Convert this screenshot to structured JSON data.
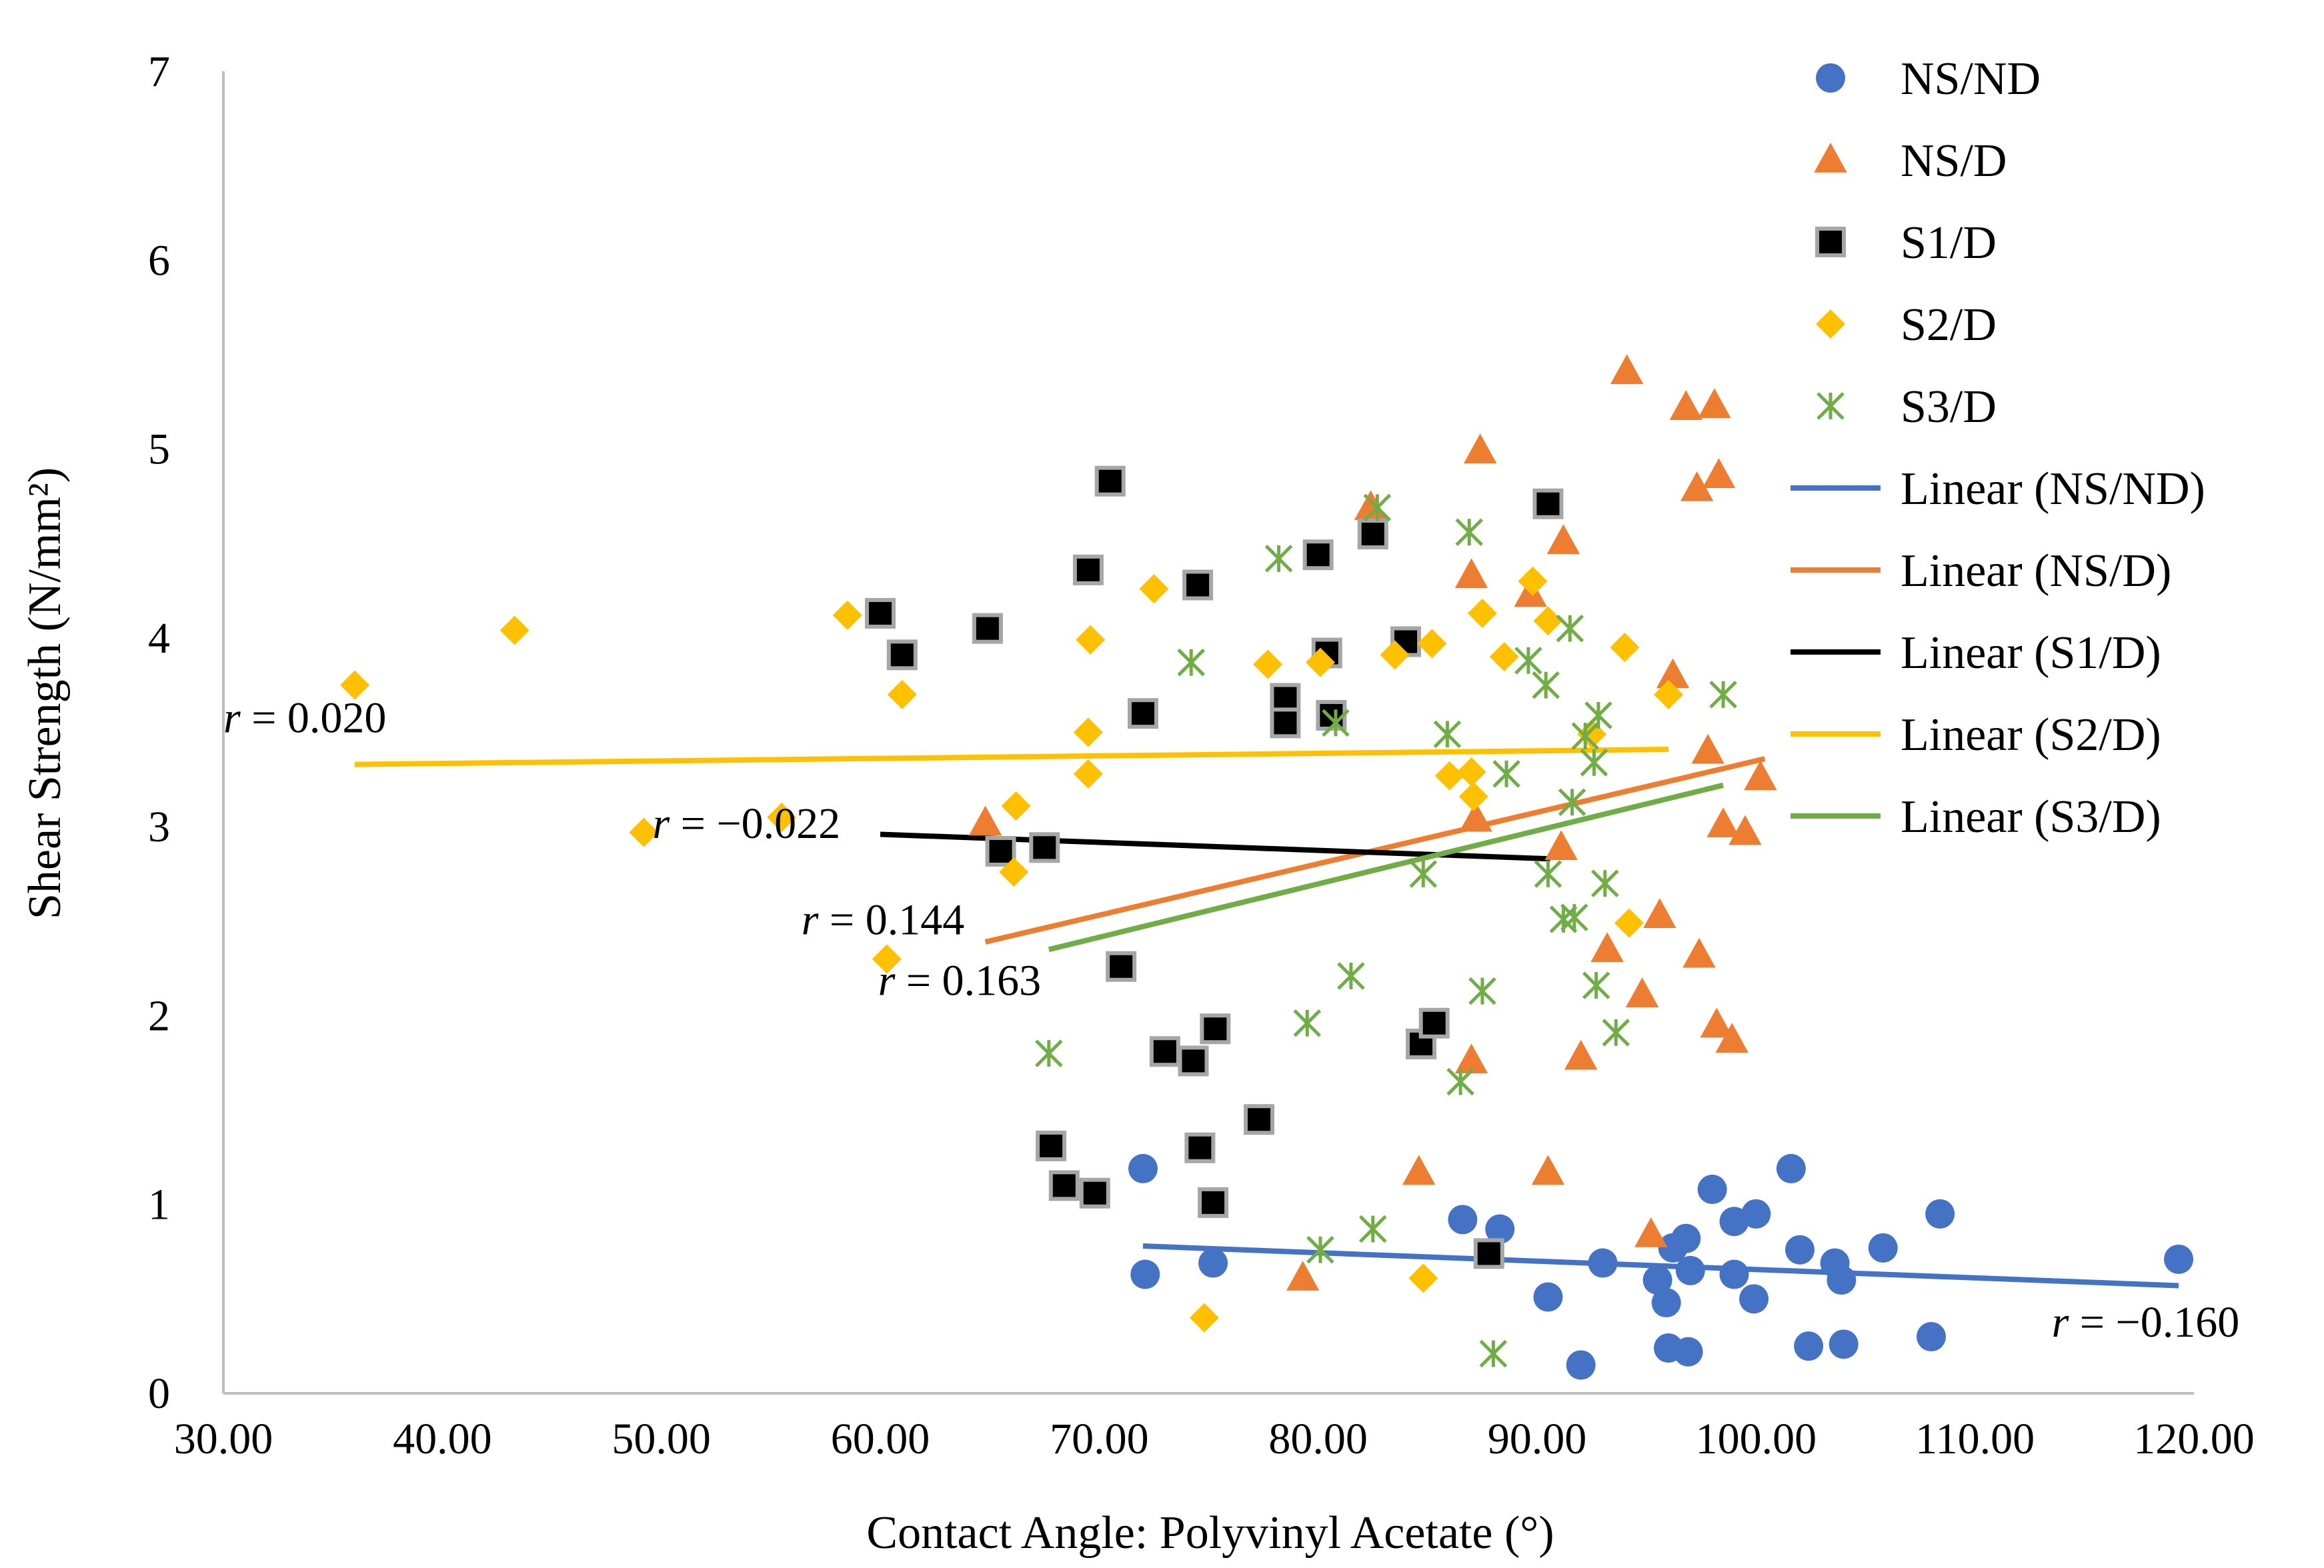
{
  "chart_data": {
    "type": "scatter",
    "xlabel": "Contact Angle: Polyvinyl Acetate (°)",
    "ylabel": "Shear Strength (N/mm²)",
    "xlim": [
      30,
      120
    ],
    "ylim": [
      0,
      7
    ],
    "x_ticks": [
      "30.00",
      "40.00",
      "50.00",
      "60.00",
      "70.00",
      "80.00",
      "90.00",
      "100.00",
      "110.00",
      "120.00"
    ],
    "y_ticks": [
      "0",
      "1",
      "2",
      "3",
      "4",
      "5",
      "6",
      "7"
    ],
    "grid": false,
    "legend_position": "right",
    "series": [
      {
        "name": "NS/ND",
        "marker": "circle",
        "color": "#4472C4",
        "points": [
          [
            72.0,
            1.19
          ],
          [
            72.1,
            0.63
          ],
          [
            75.2,
            0.69
          ],
          [
            86.6,
            0.92
          ],
          [
            88.3,
            0.87
          ],
          [
            90.5,
            0.51
          ],
          [
            92.0,
            0.15
          ],
          [
            93.0,
            0.69
          ],
          [
            95.5,
            0.6
          ],
          [
            95.9,
            0.48
          ],
          [
            96.0,
            0.24
          ],
          [
            96.2,
            0.77
          ],
          [
            96.8,
            0.82
          ],
          [
            96.9,
            0.22
          ],
          [
            97.0,
            0.65
          ],
          [
            98.0,
            1.08
          ],
          [
            99.0,
            0.63
          ],
          [
            99.0,
            0.91
          ],
          [
            99.9,
            0.5
          ],
          [
            100.0,
            0.95
          ],
          [
            101.6,
            1.19
          ],
          [
            102.0,
            0.76
          ],
          [
            102.4,
            0.25
          ],
          [
            103.6,
            0.69
          ],
          [
            103.9,
            0.6
          ],
          [
            104.0,
            0.26
          ],
          [
            105.8,
            0.77
          ],
          [
            108.0,
            0.3
          ],
          [
            108.4,
            0.95
          ],
          [
            119.3,
            0.71
          ]
        ]
      },
      {
        "name": "NS/D",
        "marker": "triangle",
        "color": "#ED7D31",
        "points": [
          [
            64.8,
            3.02
          ],
          [
            79.3,
            0.61
          ],
          [
            82.4,
            4.69
          ],
          [
            84.6,
            1.17
          ],
          [
            87.0,
            4.33
          ],
          [
            87.0,
            1.76
          ],
          [
            87.2,
            3.04
          ],
          [
            87.4,
            4.99
          ],
          [
            89.7,
            4.23
          ],
          [
            90.5,
            1.17
          ],
          [
            91.1,
            2.89
          ],
          [
            91.2,
            4.51
          ],
          [
            92.0,
            1.78
          ],
          [
            93.2,
            2.35
          ],
          [
            94.1,
            5.41
          ],
          [
            94.8,
            2.11
          ],
          [
            95.2,
            0.84
          ],
          [
            95.6,
            2.53
          ],
          [
            96.2,
            3.8
          ],
          [
            96.8,
            5.22
          ],
          [
            97.3,
            4.79
          ],
          [
            97.4,
            2.32
          ],
          [
            97.8,
            3.4
          ],
          [
            98.1,
            5.23
          ],
          [
            98.2,
            1.95
          ],
          [
            98.3,
            4.86
          ],
          [
            98.5,
            3.01
          ],
          [
            98.9,
            1.87
          ],
          [
            99.5,
            2.97
          ],
          [
            100.2,
            3.26
          ]
        ]
      },
      {
        "name": "S1/D",
        "marker": "square",
        "color": "#000000",
        "points": [
          [
            60.0,
            4.13
          ],
          [
            61.0,
            3.91
          ],
          [
            64.9,
            4.05
          ],
          [
            65.5,
            2.87
          ],
          [
            67.5,
            2.89
          ],
          [
            67.8,
            1.31
          ],
          [
            68.4,
            1.1
          ],
          [
            69.5,
            4.36
          ],
          [
            69.8,
            1.06
          ],
          [
            70.5,
            4.83
          ],
          [
            71.0,
            2.26
          ],
          [
            72.0,
            3.6
          ],
          [
            73.0,
            1.81
          ],
          [
            74.3,
            1.76
          ],
          [
            74.5,
            4.28
          ],
          [
            74.6,
            1.3
          ],
          [
            75.2,
            1.01
          ],
          [
            75.3,
            1.93
          ],
          [
            77.3,
            1.45
          ],
          [
            78.5,
            3.68
          ],
          [
            78.5,
            3.55
          ],
          [
            80.0,
            4.44
          ],
          [
            80.4,
            3.92
          ],
          [
            80.6,
            3.59
          ],
          [
            82.5,
            4.55
          ],
          [
            84.0,
            3.98
          ],
          [
            84.7,
            1.85
          ],
          [
            85.3,
            1.96
          ],
          [
            87.8,
            0.74
          ],
          [
            90.5,
            4.71
          ]
        ]
      },
      {
        "name": "S2/D",
        "marker": "diamond",
        "color": "#FFC000",
        "points": [
          [
            36.0,
            3.75
          ],
          [
            43.3,
            4.04
          ],
          [
            49.2,
            2.97
          ],
          [
            55.5,
            3.05
          ],
          [
            58.5,
            4.12
          ],
          [
            60.3,
            2.3
          ],
          [
            61.0,
            3.7
          ],
          [
            66.1,
            2.76
          ],
          [
            66.2,
            3.11
          ],
          [
            69.5,
            3.5
          ],
          [
            69.5,
            3.28
          ],
          [
            69.6,
            3.99
          ],
          [
            72.5,
            4.26
          ],
          [
            74.8,
            0.4
          ],
          [
            77.7,
            3.86
          ],
          [
            80.1,
            3.87
          ],
          [
            83.5,
            3.91
          ],
          [
            84.8,
            0.61
          ],
          [
            85.2,
            3.97
          ],
          [
            86.0,
            3.27
          ],
          [
            87.0,
            3.29
          ],
          [
            87.1,
            3.16
          ],
          [
            87.5,
            4.13
          ],
          [
            88.5,
            3.9
          ],
          [
            89.8,
            4.3
          ],
          [
            90.5,
            4.09
          ],
          [
            92.5,
            3.49
          ],
          [
            94.0,
            3.95
          ],
          [
            94.2,
            2.49
          ],
          [
            96.0,
            3.7
          ]
        ]
      },
      {
        "name": "S3/D",
        "marker": "x",
        "color": "#70AD47",
        "points": [
          [
            67.7,
            1.8
          ],
          [
            74.2,
            3.87
          ],
          [
            78.2,
            4.42
          ],
          [
            79.5,
            1.96
          ],
          [
            80.1,
            0.76
          ],
          [
            80.8,
            3.55
          ],
          [
            81.5,
            2.21
          ],
          [
            82.5,
            0.87
          ],
          [
            82.7,
            4.69
          ],
          [
            84.8,
            2.75
          ],
          [
            85.9,
            3.49
          ],
          [
            86.5,
            1.65
          ],
          [
            86.9,
            4.56
          ],
          [
            87.5,
            2.13
          ],
          [
            88.6,
            3.28
          ],
          [
            89.6,
            3.88
          ],
          [
            90.4,
            3.75
          ],
          [
            90.5,
            2.75
          ],
          [
            91.5,
            4.05
          ],
          [
            91.6,
            3.13
          ],
          [
            91.7,
            2.52
          ],
          [
            92.2,
            3.48
          ],
          [
            92.6,
            3.34
          ],
          [
            92.7,
            2.16
          ],
          [
            92.8,
            3.59
          ],
          [
            93.1,
            2.7
          ],
          [
            93.6,
            1.91
          ],
          [
            98.5,
            3.7
          ],
          [
            88.0,
            0.21
          ],
          [
            91.2,
            2.51
          ]
        ]
      }
    ],
    "trendlines": [
      {
        "name": "Linear (NS/ND)",
        "color": "#4472C4",
        "x": [
          72.0,
          119.3
        ],
        "y": [
          0.78,
          0.57
        ]
      },
      {
        "name": "Linear (NS/D)",
        "color": "#ED7D31",
        "x": [
          64.8,
          100.4
        ],
        "y": [
          2.39,
          3.36
        ]
      },
      {
        "name": "Linear (S1/D)",
        "color": "#000000",
        "x": [
          60.0,
          90.6
        ],
        "y": [
          2.96,
          2.83
        ]
      },
      {
        "name": "Linear (S2/D)",
        "color": "#FFC000",
        "x": [
          36.0,
          96.0
        ],
        "y": [
          3.33,
          3.41
        ]
      },
      {
        "name": "Linear (S3/D)",
        "color": "#70AD47",
        "x": [
          67.7,
          98.5
        ],
        "y": [
          2.35,
          3.22
        ]
      }
    ],
    "annotations": [
      {
        "text": " = 0.020",
        "prefix": "r",
        "x": 30.0,
        "y": 3.5,
        "anchor": "start"
      },
      {
        "text": " = −0.022",
        "prefix": "r",
        "x": 49.6,
        "y": 2.94,
        "anchor": "start"
      },
      {
        "text": " = 0.144",
        "prefix": "r",
        "x": 56.4,
        "y": 2.43,
        "anchor": "start"
      },
      {
        "text": " = 0.163",
        "prefix": "r",
        "x": 59.9,
        "y": 2.11,
        "anchor": "start"
      },
      {
        "text": " = −0.160",
        "prefix": "r",
        "x": 113.5,
        "y": 0.3,
        "anchor": "start"
      }
    ]
  }
}
